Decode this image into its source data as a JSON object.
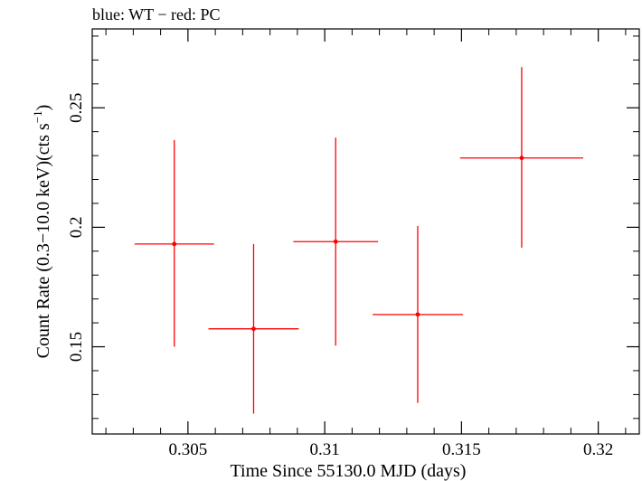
{
  "chart_data": {
    "type": "scatter",
    "title": "blue: WT − red: PC",
    "xlabel": "Time Since 55130.0 MJD (days)",
    "ylabel_main": "Count Rate (0.3−10.0 keV)(cts s",
    "ylabel_sup": "−1",
    "ylabel_end": ")",
    "xlim": [
      0.3015,
      0.3215
    ],
    "ylim": [
      0.1135,
      0.283
    ],
    "x_ticks": [
      {
        "value": 0.305,
        "label": "0.305"
      },
      {
        "value": 0.31,
        "label": "0.31"
      },
      {
        "value": 0.315,
        "label": "0.315"
      },
      {
        "value": 0.32,
        "label": "0.32"
      }
    ],
    "y_ticks": [
      {
        "value": 0.15,
        "label": "0.15"
      },
      {
        "value": 0.2,
        "label": "0.2"
      },
      {
        "value": 0.25,
        "label": "0.25"
      }
    ],
    "x_minor_step": 0.001,
    "y_minor_step": 0.01,
    "series": [
      {
        "name": "PC",
        "color": "#ff0000",
        "points": [
          {
            "x": 0.3045,
            "y": 0.193,
            "xerr_low": 0.00145,
            "xerr_high": 0.00145,
            "yerr_low": 0.043,
            "yerr_high": 0.0435
          },
          {
            "x": 0.3074,
            "y": 0.1575,
            "xerr_low": 0.00165,
            "xerr_high": 0.00165,
            "yerr_low": 0.0355,
            "yerr_high": 0.0355
          },
          {
            "x": 0.3104,
            "y": 0.194,
            "xerr_low": 0.00155,
            "xerr_high": 0.00155,
            "yerr_low": 0.0435,
            "yerr_high": 0.0435
          },
          {
            "x": 0.3134,
            "y": 0.1635,
            "xerr_low": 0.00165,
            "xerr_high": 0.00165,
            "yerr_low": 0.037,
            "yerr_high": 0.037
          },
          {
            "x": 0.3172,
            "y": 0.229,
            "xerr_low": 0.00225,
            "xerr_high": 0.00225,
            "yerr_low": 0.0375,
            "yerr_high": 0.038
          }
        ]
      }
    ]
  }
}
